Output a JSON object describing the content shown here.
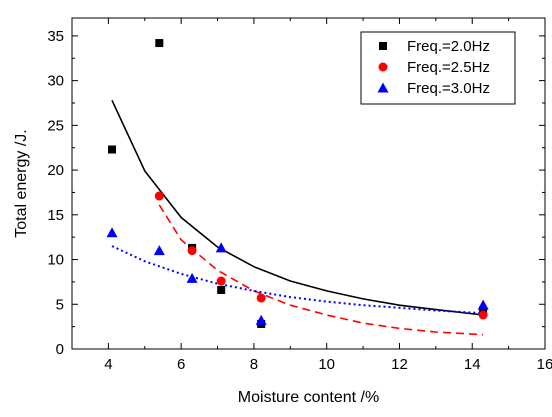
{
  "chart_data": {
    "type": "scatter",
    "title": "",
    "xlabel": "Moisture content /%",
    "ylabel": "Total energy /J.",
    "xlim": [
      3,
      16
    ],
    "ylim": [
      0,
      37
    ],
    "x_ticks": [
      4,
      6,
      8,
      10,
      12,
      14,
      16
    ],
    "y_ticks": [
      0,
      5,
      10,
      15,
      20,
      25,
      30,
      35
    ],
    "x_tick_labels": [
      "4",
      "6",
      "8",
      "10",
      "12",
      "14",
      "16"
    ],
    "y_tick_labels": [
      "0",
      "5",
      "10",
      "15",
      "20",
      "25",
      "30",
      "35"
    ],
    "grid": false,
    "legend_position": "top-right",
    "series": [
      {
        "name": "Freq.=2.0Hz",
        "marker": "square",
        "color": "#000000",
        "x": [
          4.1,
          5.4,
          6.3,
          7.1,
          8.2,
          14.3
        ],
        "y": [
          22.3,
          34.2,
          11.3,
          6.6,
          2.8,
          4.3
        ],
        "fit": {
          "style": "solid",
          "x": [
            4.1,
            5.0,
            6.0,
            7.0,
            8.0,
            9.0,
            10.0,
            11.0,
            12.0,
            13.0,
            14.3
          ],
          "y": [
            27.8,
            19.9,
            14.7,
            11.4,
            9.2,
            7.6,
            6.5,
            5.6,
            4.9,
            4.4,
            3.8
          ]
        }
      },
      {
        "name": "Freq.=2.5Hz",
        "marker": "circle",
        "color": "#ff0000",
        "x": [
          5.4,
          6.3,
          7.1,
          8.2,
          14.3
        ],
        "y": [
          17.1,
          11.0,
          7.6,
          5.7,
          3.8
        ],
        "fit": {
          "style": "dashed",
          "x": [
            5.4,
            6.0,
            7.0,
            8.0,
            9.0,
            10.0,
            11.0,
            12.0,
            13.0,
            14.3
          ],
          "y": [
            16.1,
            12.2,
            8.8,
            6.5,
            4.9,
            3.8,
            2.9,
            2.3,
            1.9,
            1.6
          ]
        }
      },
      {
        "name": "Freq.=3.0Hz",
        "marker": "triangle",
        "color": "#0000ff",
        "x": [
          4.1,
          5.4,
          6.3,
          7.1,
          8.2,
          14.3
        ],
        "y": [
          13.0,
          11.0,
          7.9,
          11.3,
          3.2,
          4.9
        ],
        "fit": {
          "style": "dotted",
          "x": [
            4.1,
            5.0,
            6.0,
            7.0,
            8.0,
            9.0,
            10.0,
            11.0,
            12.0,
            13.0,
            14.3
          ],
          "y": [
            11.5,
            9.8,
            8.4,
            7.3,
            6.5,
            5.8,
            5.3,
            4.9,
            4.6,
            4.3,
            4.0
          ]
        }
      }
    ]
  }
}
